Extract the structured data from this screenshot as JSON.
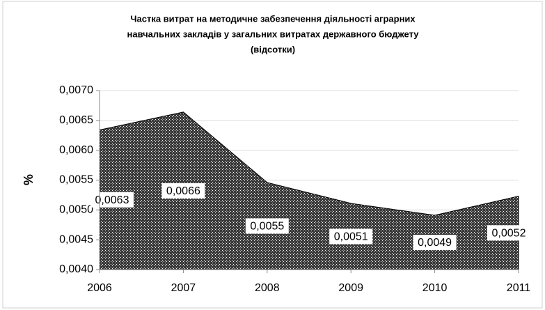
{
  "chart_data": {
    "type": "area",
    "title": [
      "Частка витрат на методичне забезпечення діяльності аграрних",
      "навчальних закладів у загальних витратах державного бюджету",
      "(відсотки)"
    ],
    "y_label": "%",
    "categories": [
      "2006",
      "2007",
      "2008",
      "2009",
      "2010",
      "2011"
    ],
    "values": [
      0.00634,
      0.00664,
      0.00546,
      0.00511,
      0.00491,
      0.00523
    ],
    "value_labels": [
      "0,0063",
      "0,0066",
      "0,0055",
      "0,0051",
      "0,0049",
      "0,0052"
    ],
    "color": "#3a3a3a",
    "ylim": [
      0.004,
      0.007
    ],
    "yticks": [
      {
        "value": 0.004,
        "label": "0,0040"
      },
      {
        "value": 0.0045,
        "label": "0,0045"
      },
      {
        "value": 0.005,
        "label": "0,0050"
      },
      {
        "value": 0.0055,
        "label": "0,0055"
      },
      {
        "value": 0.006,
        "label": "0,0060"
      },
      {
        "value": 0.0065,
        "label": "0,0065"
      },
      {
        "value": 0.007,
        "label": "0,0070"
      }
    ],
    "grid": true
  }
}
